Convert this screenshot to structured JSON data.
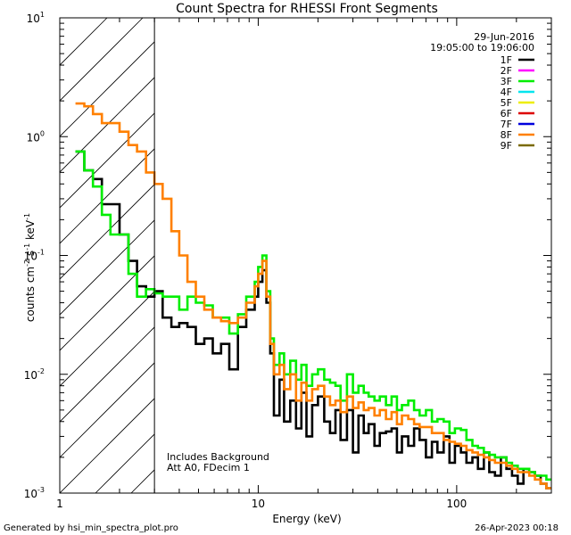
{
  "chart_data": {
    "type": "line",
    "title": "Count Spectra for RHESSI Front Segments",
    "xlabel": "Energy (keV)",
    "ylabel_parts": {
      "base": "counts cm",
      "exp1": "-2",
      "s": " s",
      "exp2": "-1",
      "kev": " keV",
      "exp3": "-1"
    },
    "xscale": "log",
    "yscale": "log",
    "xlim": [
      1,
      300
    ],
    "ylim": [
      0.001,
      10
    ],
    "x_ticks": [
      {
        "value": 1,
        "label": "1"
      },
      {
        "value": 10,
        "label": "10"
      },
      {
        "value": 100,
        "label": "100"
      }
    ],
    "y_ticks": [
      {
        "value": 0.001,
        "base": "10",
        "exp": "-3"
      },
      {
        "value": 0.01,
        "base": "10",
        "exp": "-2"
      },
      {
        "value": 0.1,
        "base": "10",
        "exp": "-1"
      },
      {
        "value": 1,
        "base": "10",
        "exp": "0"
      },
      {
        "value": 10,
        "base": "10",
        "exp": "1"
      }
    ],
    "hatched_region_kev": [
      1,
      3
    ],
    "header": {
      "date": "29-Jun-2016",
      "time_range": "19:05:00 to 19:06:00"
    },
    "legend": [
      {
        "name": "1F",
        "color": "#000000"
      },
      {
        "name": "2F",
        "color": "#ff00ff"
      },
      {
        "name": "3F",
        "color": "#00ee00"
      },
      {
        "name": "4F",
        "color": "#00e5ee"
      },
      {
        "name": "5F",
        "color": "#eeee00"
      },
      {
        "name": "6F",
        "color": "#dd0000"
      },
      {
        "name": "7F",
        "color": "#0000dd"
      },
      {
        "name": "8F",
        "color": "#ff8000"
      },
      {
        "name": "9F",
        "color": "#7a6a00"
      }
    ],
    "annotations": [
      "Includes Background",
      "Att A0, FDecim 1"
    ],
    "series": [
      {
        "name": "1F",
        "color": "#000000",
        "x": [
          1.2,
          1.33,
          1.47,
          1.63,
          1.8,
          2.0,
          2.22,
          2.45,
          2.72,
          3.0,
          3.3,
          3.65,
          4.0,
          4.4,
          4.85,
          5.35,
          5.9,
          6.5,
          7.15,
          7.9,
          8.7,
          9.6,
          10.0,
          10.5,
          11.0,
          11.5,
          12.0,
          12.8,
          13.5,
          14.5,
          15.5,
          16.5,
          17.5,
          18.7,
          20,
          21.5,
          23,
          24.5,
          26,
          28,
          30,
          32,
          34,
          36,
          38.5,
          41,
          44,
          47,
          50,
          53,
          57,
          61,
          65,
          70,
          75,
          80,
          86,
          92,
          98,
          105,
          112,
          120,
          128,
          137,
          146,
          156,
          167,
          178,
          190,
          203,
          217,
          232,
          248,
          265,
          283
        ],
        "values": [
          0.75,
          0.52,
          0.44,
          0.27,
          0.27,
          0.15,
          0.09,
          0.055,
          0.045,
          0.05,
          0.03,
          0.025,
          0.027,
          0.025,
          0.018,
          0.02,
          0.015,
          0.018,
          0.011,
          0.025,
          0.035,
          0.045,
          0.06,
          0.075,
          0.04,
          0.015,
          0.0045,
          0.009,
          0.004,
          0.006,
          0.0035,
          0.007,
          0.003,
          0.0055,
          0.0065,
          0.004,
          0.0032,
          0.005,
          0.0028,
          0.005,
          0.0022,
          0.0045,
          0.0032,
          0.0038,
          0.0025,
          0.0032,
          0.0033,
          0.0035,
          0.0022,
          0.003,
          0.0025,
          0.0035,
          0.0028,
          0.002,
          0.0027,
          0.0022,
          0.003,
          0.0018,
          0.0025,
          0.0022,
          0.0018,
          0.002,
          0.0016,
          0.0022,
          0.0015,
          0.0014,
          0.002,
          0.0016,
          0.0014,
          0.0012,
          0.0016,
          0.0015,
          0.0014,
          0.0012,
          0.0011
        ]
      },
      {
        "name": "3F",
        "color": "#00ee00",
        "x": [
          1.2,
          1.33,
          1.47,
          1.63,
          1.8,
          2.0,
          2.22,
          2.45,
          2.72,
          3.0,
          3.3,
          3.65,
          4.0,
          4.4,
          4.85,
          5.35,
          5.9,
          6.5,
          7.15,
          7.9,
          8.7,
          9.6,
          10.0,
          10.5,
          11.0,
          11.5,
          12.0,
          12.8,
          13.5,
          14.5,
          15.5,
          16.5,
          17.5,
          18.7,
          20,
          21.5,
          23,
          24.5,
          26,
          28,
          30,
          32,
          34,
          36,
          38.5,
          41,
          44,
          47,
          50,
          53,
          57,
          61,
          65,
          70,
          75,
          80,
          86,
          92,
          98,
          105,
          112,
          120,
          128,
          137,
          146,
          156,
          167,
          178,
          190,
          203,
          217,
          232,
          248,
          265,
          283
        ],
        "values": [
          0.75,
          0.52,
          0.38,
          0.22,
          0.15,
          0.15,
          0.07,
          0.045,
          0.052,
          0.048,
          0.045,
          0.045,
          0.035,
          0.045,
          0.04,
          0.038,
          0.03,
          0.03,
          0.022,
          0.032,
          0.045,
          0.06,
          0.08,
          0.1,
          0.05,
          0.02,
          0.012,
          0.015,
          0.01,
          0.013,
          0.009,
          0.012,
          0.008,
          0.01,
          0.011,
          0.009,
          0.0085,
          0.008,
          0.006,
          0.01,
          0.007,
          0.008,
          0.007,
          0.0065,
          0.006,
          0.0065,
          0.0055,
          0.0065,
          0.005,
          0.0055,
          0.006,
          0.005,
          0.0045,
          0.005,
          0.004,
          0.0042,
          0.004,
          0.0032,
          0.0035,
          0.0034,
          0.0028,
          0.0025,
          0.0024,
          0.0022,
          0.0021,
          0.002,
          0.002,
          0.0018,
          0.0017,
          0.0016,
          0.0016,
          0.0015,
          0.0014,
          0.0014,
          0.0013
        ]
      },
      {
        "name": "8F",
        "color": "#ff8000",
        "x": [
          1.2,
          1.33,
          1.47,
          1.63,
          1.8,
          2.0,
          2.22,
          2.45,
          2.72,
          3.0,
          3.3,
          3.65,
          4.0,
          4.4,
          4.85,
          5.35,
          5.9,
          6.5,
          7.15,
          7.9,
          8.7,
          9.6,
          10.0,
          10.5,
          11.0,
          11.5,
          12.0,
          12.8,
          13.5,
          14.5,
          15.5,
          16.5,
          17.5,
          18.7,
          20,
          21.5,
          23,
          24.5,
          26,
          28,
          30,
          32,
          34,
          36,
          38.5,
          41,
          44,
          47,
          50,
          53,
          57,
          61,
          65,
          70,
          75,
          80,
          86,
          92,
          98,
          105,
          112,
          120,
          128,
          137,
          146,
          156,
          167,
          178,
          190,
          203,
          217,
          232,
          248,
          265,
          283
        ],
        "values": [
          1.9,
          1.8,
          1.55,
          1.3,
          1.3,
          1.1,
          0.85,
          0.75,
          0.5,
          0.4,
          0.3,
          0.16,
          0.1,
          0.06,
          0.045,
          0.035,
          0.03,
          0.028,
          0.027,
          0.03,
          0.04,
          0.055,
          0.07,
          0.09,
          0.045,
          0.018,
          0.01,
          0.012,
          0.0075,
          0.01,
          0.006,
          0.0085,
          0.006,
          0.0075,
          0.008,
          0.0065,
          0.0055,
          0.006,
          0.0048,
          0.0065,
          0.0052,
          0.0058,
          0.005,
          0.0052,
          0.0045,
          0.005,
          0.0042,
          0.0048,
          0.0038,
          0.0045,
          0.0042,
          0.0038,
          0.0036,
          0.0036,
          0.0032,
          0.0032,
          0.0028,
          0.0027,
          0.0026,
          0.0025,
          0.0023,
          0.0022,
          0.0021,
          0.002,
          0.0019,
          0.0018,
          0.0018,
          0.0017,
          0.0016,
          0.0015,
          0.0015,
          0.0014,
          0.0013,
          0.0012,
          0.0011
        ]
      }
    ]
  },
  "footer": {
    "left": "Generated by hsi_min_spectra_plot.pro",
    "right": "26-Apr-2023 00:18"
  }
}
